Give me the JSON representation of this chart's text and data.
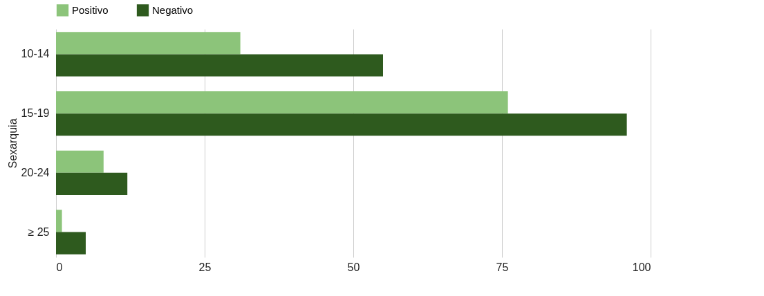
{
  "chart_data": {
    "type": "bar",
    "orientation": "horizontal",
    "ylabel": "Sexarquia",
    "categories": [
      "10-14",
      "15-19",
      "20-24",
      "≥ 25"
    ],
    "series": [
      {
        "name": "Positivo",
        "color": "#8cc47a",
        "values": [
          31,
          76,
          8,
          1
        ]
      },
      {
        "name": "Negativo",
        "color": "#2e5a1e",
        "values": [
          55,
          96,
          12,
          5
        ]
      }
    ],
    "xlim": [
      0,
      100
    ],
    "xticks": [
      0,
      25,
      50,
      75,
      100
    ],
    "grid": "x",
    "legend": "top"
  }
}
